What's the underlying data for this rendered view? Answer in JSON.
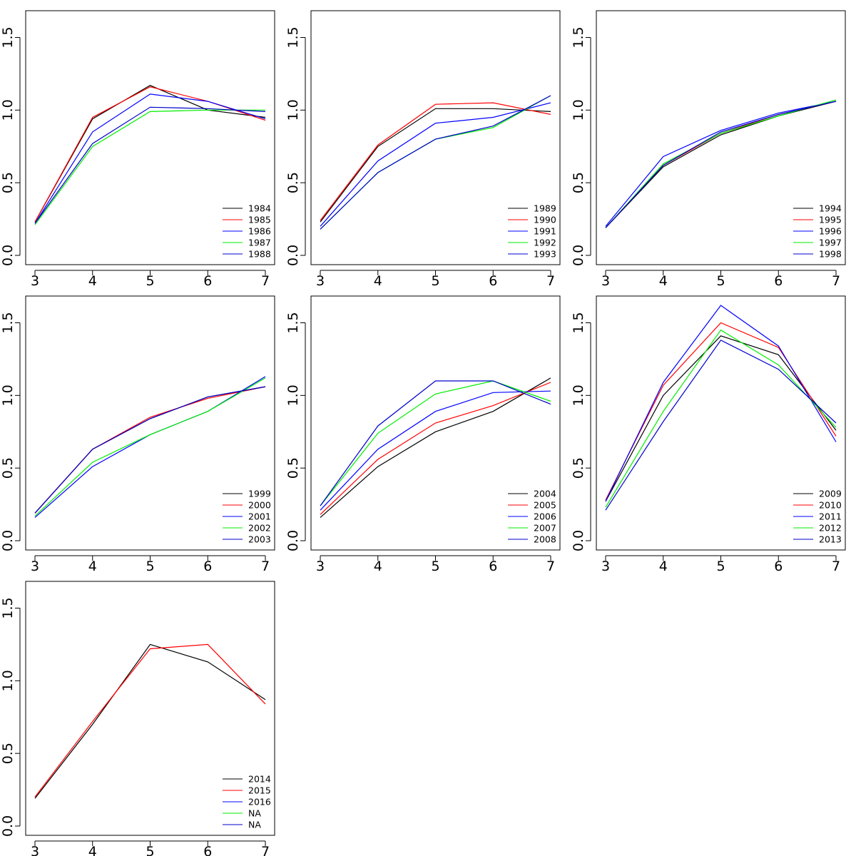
{
  "chart_data": [
    {
      "type": "line",
      "x": [
        3,
        4,
        5,
        6,
        7
      ],
      "xlim": [
        3,
        7
      ],
      "ylim": [
        0,
        1.7
      ],
      "xticks": [
        "3",
        "4",
        "5",
        "6",
        "7"
      ],
      "yticks": [
        "0.0",
        "0.5",
        "1.0",
        "1.5"
      ],
      "grid": false,
      "legend_position": "bottom-right",
      "series": [
        {
          "name": "1984",
          "color": "#000000",
          "values": [
            0.23,
            0.94,
            1.17,
            1.0,
            0.95
          ]
        },
        {
          "name": "1985",
          "color": "#ff0000",
          "values": [
            0.23,
            0.95,
            1.16,
            1.06,
            0.93
          ]
        },
        {
          "name": "1986",
          "color": "#0000ff",
          "values": [
            0.22,
            0.85,
            1.11,
            1.06,
            0.94
          ]
        },
        {
          "name": "1987",
          "color": "#00ee00",
          "values": [
            0.21,
            0.75,
            0.99,
            1.0,
            1.0
          ]
        },
        {
          "name": "1988",
          "color": "#0000cc",
          "values": [
            0.22,
            0.77,
            1.02,
            1.01,
            0.99
          ]
        }
      ]
    },
    {
      "type": "line",
      "x": [
        3,
        4,
        5,
        6,
        7
      ],
      "xlim": [
        3,
        7
      ],
      "ylim": [
        0,
        1.7
      ],
      "xticks": [
        "3",
        "4",
        "5",
        "6",
        "7"
      ],
      "yticks": [
        "0.0",
        "0.5",
        "1.0",
        "1.5"
      ],
      "grid": false,
      "legend_position": "bottom-right",
      "series": [
        {
          "name": "1989",
          "color": "#000000",
          "values": [
            0.23,
            0.75,
            1.01,
            1.01,
            0.99
          ]
        },
        {
          "name": "1990",
          "color": "#ff0000",
          "values": [
            0.24,
            0.76,
            1.04,
            1.05,
            0.97
          ]
        },
        {
          "name": "1991",
          "color": "#0000ff",
          "values": [
            0.2,
            0.65,
            0.91,
            0.95,
            1.05
          ]
        },
        {
          "name": "1992",
          "color": "#00ee00",
          "values": [
            0.18,
            0.57,
            0.8,
            0.88,
            1.1
          ]
        },
        {
          "name": "1993",
          "color": "#0000cc",
          "values": [
            0.18,
            0.57,
            0.8,
            0.89,
            1.1
          ]
        }
      ]
    },
    {
      "type": "line",
      "x": [
        3,
        4,
        5,
        6,
        7
      ],
      "xlim": [
        3,
        7
      ],
      "ylim": [
        0,
        1.7
      ],
      "xticks": [
        "3",
        "4",
        "5",
        "6",
        "7"
      ],
      "yticks": [
        "0.0",
        "0.5",
        "1.0",
        "1.5"
      ],
      "grid": false,
      "legend_position": "bottom-right",
      "series": [
        {
          "name": "1994",
          "color": "#000000",
          "values": [
            0.19,
            0.61,
            0.83,
            0.96,
            1.06
          ]
        },
        {
          "name": "1995",
          "color": "#ff0000",
          "values": [
            0.19,
            0.62,
            0.84,
            0.97,
            1.06
          ]
        },
        {
          "name": "1996",
          "color": "#0000ff",
          "values": [
            0.2,
            0.68,
            0.86,
            0.98,
            1.06
          ]
        },
        {
          "name": "1997",
          "color": "#00ee00",
          "values": [
            0.19,
            0.63,
            0.84,
            0.96,
            1.07
          ]
        },
        {
          "name": "1998",
          "color": "#0000cc",
          "values": [
            0.19,
            0.62,
            0.85,
            0.97,
            1.06
          ]
        }
      ]
    },
    {
      "type": "line",
      "x": [
        3,
        4,
        5,
        6,
        7
      ],
      "xlim": [
        3,
        7
      ],
      "ylim": [
        0,
        1.7
      ],
      "xticks": [
        "3",
        "4",
        "5",
        "6",
        "7"
      ],
      "yticks": [
        "0.0",
        "0.5",
        "1.0",
        "1.5"
      ],
      "grid": false,
      "legend_position": "bottom-right",
      "series": [
        {
          "name": "1999",
          "color": "#000000",
          "values": [
            0.19,
            0.63,
            0.84,
            0.99,
            1.06
          ]
        },
        {
          "name": "2000",
          "color": "#ff0000",
          "values": [
            0.19,
            0.63,
            0.85,
            0.98,
            1.06
          ]
        },
        {
          "name": "2001",
          "color": "#0000ff",
          "values": [
            0.16,
            0.51,
            0.73,
            0.89,
            1.13
          ]
        },
        {
          "name": "2002",
          "color": "#00ee00",
          "values": [
            0.17,
            0.54,
            0.73,
            0.89,
            1.12
          ]
        },
        {
          "name": "2003",
          "color": "#0000cc",
          "values": [
            0.19,
            0.63,
            0.84,
            0.99,
            1.06
          ]
        }
      ]
    },
    {
      "type": "line",
      "x": [
        3,
        4,
        5,
        6,
        7
      ],
      "xlim": [
        3,
        7
      ],
      "ylim": [
        0,
        1.7
      ],
      "xticks": [
        "3",
        "4",
        "5",
        "6",
        "7"
      ],
      "yticks": [
        "0.0",
        "0.5",
        "1.0",
        "1.5"
      ],
      "grid": false,
      "legend_position": "bottom-right",
      "series": [
        {
          "name": "2004",
          "color": "#000000",
          "values": [
            0.16,
            0.51,
            0.75,
            0.89,
            1.12
          ]
        },
        {
          "name": "2005",
          "color": "#ff0000",
          "values": [
            0.18,
            0.56,
            0.81,
            0.93,
            1.09
          ]
        },
        {
          "name": "2006",
          "color": "#0000ff",
          "values": [
            0.21,
            0.63,
            0.89,
            1.02,
            1.03
          ]
        },
        {
          "name": "2007",
          "color": "#00ee00",
          "values": [
            0.24,
            0.74,
            1.01,
            1.1,
            0.96
          ]
        },
        {
          "name": "2008",
          "color": "#0000cc",
          "values": [
            0.24,
            0.79,
            1.1,
            1.1,
            0.94
          ]
        }
      ]
    },
    {
      "type": "line",
      "x": [
        3,
        4,
        5,
        6,
        7
      ],
      "xlim": [
        3,
        7
      ],
      "ylim": [
        0,
        1.7
      ],
      "xticks": [
        "3",
        "4",
        "5",
        "6",
        "7"
      ],
      "yticks": [
        "0.0",
        "0.5",
        "1.0",
        "1.5"
      ],
      "grid": false,
      "legend_position": "bottom-right",
      "series": [
        {
          "name": "2009",
          "color": "#000000",
          "values": [
            0.27,
            1.0,
            1.41,
            1.28,
            0.76
          ]
        },
        {
          "name": "2010",
          "color": "#ff0000",
          "values": [
            0.28,
            1.07,
            1.5,
            1.33,
            0.72
          ]
        },
        {
          "name": "2011",
          "color": "#0000ff",
          "values": [
            0.27,
            1.09,
            1.62,
            1.34,
            0.68
          ]
        },
        {
          "name": "2012",
          "color": "#00ee00",
          "values": [
            0.23,
            0.89,
            1.45,
            1.21,
            0.78
          ]
        },
        {
          "name": "2013",
          "color": "#0000cc",
          "values": [
            0.21,
            0.82,
            1.38,
            1.18,
            0.81
          ]
        }
      ]
    },
    {
      "type": "line",
      "x": [
        3,
        4,
        5,
        6,
        7
      ],
      "xlim": [
        3,
        7
      ],
      "ylim": [
        0,
        1.7
      ],
      "xticks": [
        "3",
        "4",
        "5",
        "6",
        "7"
      ],
      "yticks": [
        "0.0",
        "0.5",
        "1.0",
        "1.5"
      ],
      "grid": false,
      "legend_position": "bottom-right",
      "series": [
        {
          "name": "2014",
          "color": "#000000",
          "values": [
            0.19,
            0.7,
            1.25,
            1.13,
            0.87
          ]
        },
        {
          "name": "2015",
          "color": "#ff0000",
          "values": [
            0.2,
            0.72,
            1.22,
            1.25,
            0.84
          ]
        },
        {
          "name": "2016",
          "color": "#0000ff",
          "values": null
        },
        {
          "name": "NA",
          "color": "#00ee00",
          "values": null
        },
        {
          "name": "NA",
          "color": "#0000cc",
          "values": null
        }
      ]
    }
  ]
}
